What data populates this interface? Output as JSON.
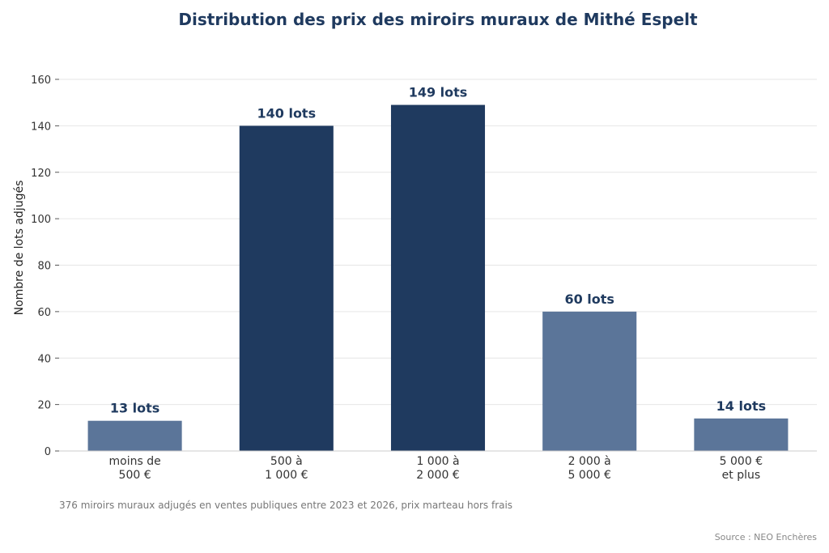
{
  "chart_data": {
    "type": "bar",
    "title": "Distribution des prix des miroirs muraux de Mithé Espelt",
    "ylabel": "Nombre de lots adjugés",
    "xlabel": "",
    "categories": [
      [
        "moins de",
        "500 €"
      ],
      [
        "500 à",
        "1 000 €"
      ],
      [
        "1 000 à",
        "2 000 €"
      ],
      [
        "2 000 à",
        "5 000 €"
      ],
      [
        "5 000 €",
        "et plus"
      ]
    ],
    "values": [
      13,
      140,
      149,
      60,
      14
    ],
    "data_labels": [
      "13 lots",
      "140 lots",
      "149 lots",
      "60 lots",
      "14 lots"
    ],
    "ylim": [
      0,
      160
    ],
    "yticks": [
      0,
      20,
      40,
      60,
      80,
      100,
      120,
      140,
      160
    ],
    "grid": true,
    "colors": {
      "highlight": "#1f3a5f",
      "normal": "#5b7599",
      "label": "#1f3a5f"
    },
    "highlighted": [
      1,
      2
    ],
    "footnote": "376 miroirs muraux adjugés en ventes publiques entre 2023 et 2026, prix marteau hors frais",
    "source": "Source : NEO Enchères"
  }
}
